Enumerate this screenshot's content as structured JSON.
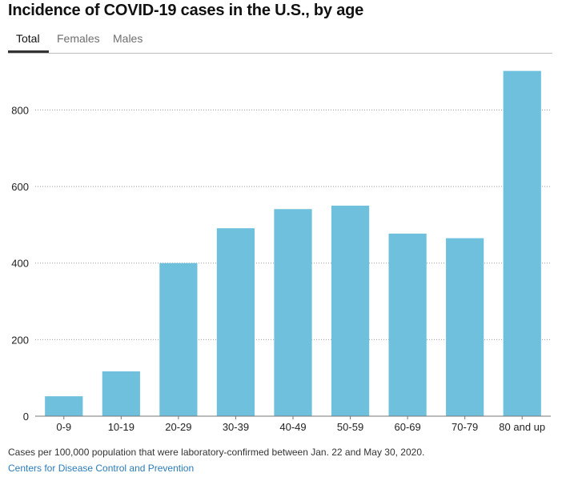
{
  "title": "Incidence of COVID-19 cases in the U.S., by age",
  "tabs": [
    {
      "label": "Total",
      "active": true
    },
    {
      "label": "Females",
      "active": false
    },
    {
      "label": "Males",
      "active": false
    }
  ],
  "colors": {
    "bar": "#6ec0dc",
    "grid": "#9a9a9a",
    "axis": "#777777",
    "tab_active_underline": "#333333"
  },
  "chart_data": {
    "type": "bar",
    "title": "",
    "xlabel": "",
    "ylabel": "",
    "categories": [
      "0-9",
      "10-19",
      "20-29",
      "30-39",
      "40-49",
      "50-59",
      "60-69",
      "70-79",
      "80 and up"
    ],
    "values": [
      52,
      117,
      400,
      491,
      541,
      550,
      477,
      465,
      902
    ],
    "ylim": [
      0,
      920
    ],
    "yticks": [
      0,
      200,
      400,
      600,
      800
    ],
    "grid": true,
    "legend": "none"
  },
  "footer": {
    "note": "Cases per 100,000 population that were laboratory-confirmed between Jan. 22 and May 30, 2020.",
    "source": "Centers for Disease Control and Prevention"
  }
}
